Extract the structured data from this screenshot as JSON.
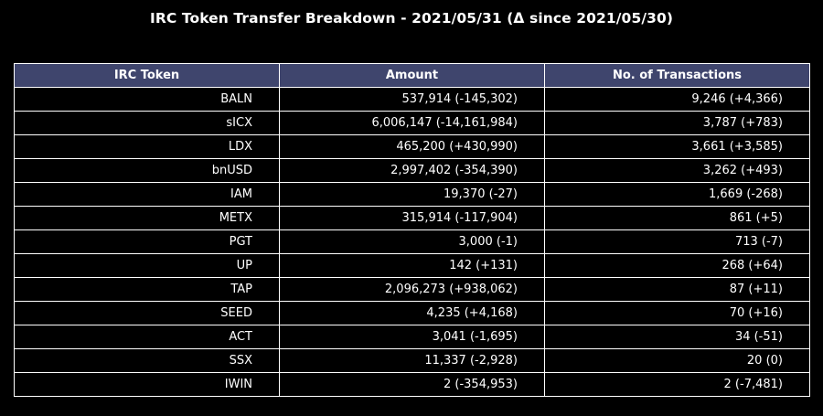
{
  "title": "IRC Token Transfer Breakdown - 2021/05/31 (Δ since 2021/05/30)",
  "chart_data": {
    "type": "table",
    "title": "IRC Token Transfer Breakdown - 2021/05/31 (Δ since 2021/05/30)",
    "columns": [
      "IRC Token",
      "Amount",
      "No. of Transactions"
    ],
    "rows": [
      [
        "BALN",
        "537,914 (-145,302)",
        "9,246 (+4,366)"
      ],
      [
        "sICX",
        "6,006,147 (-14,161,984)",
        "3,787 (+783)"
      ],
      [
        "LDX",
        "465,200 (+430,990)",
        "3,661 (+3,585)"
      ],
      [
        "bnUSD",
        "2,997,402 (-354,390)",
        "3,262 (+493)"
      ],
      [
        "IAM",
        "19,370 (-27)",
        "1,669 (-268)"
      ],
      [
        "METX",
        "315,914 (-117,904)",
        "861 (+5)"
      ],
      [
        "PGT",
        "3,000 (-1)",
        "713 (-7)"
      ],
      [
        "UP",
        "142 (+131)",
        "268 (+64)"
      ],
      [
        "TAP",
        "2,096,273 (+938,062)",
        "87 (+11)"
      ],
      [
        "SEED",
        "4,235 (+4,168)",
        "70 (+16)"
      ],
      [
        "ACT",
        "3,041 (-1,695)",
        "34 (-51)"
      ],
      [
        "SSX",
        "11,337 (-2,928)",
        "20 (0)"
      ],
      [
        "IWIN",
        "2 (-354,953)",
        "2 (-7,481)"
      ]
    ]
  },
  "colors": {
    "background": "#000000",
    "header_fill": "#3f456d",
    "text": "#ffffff",
    "border": "#ffffff"
  }
}
